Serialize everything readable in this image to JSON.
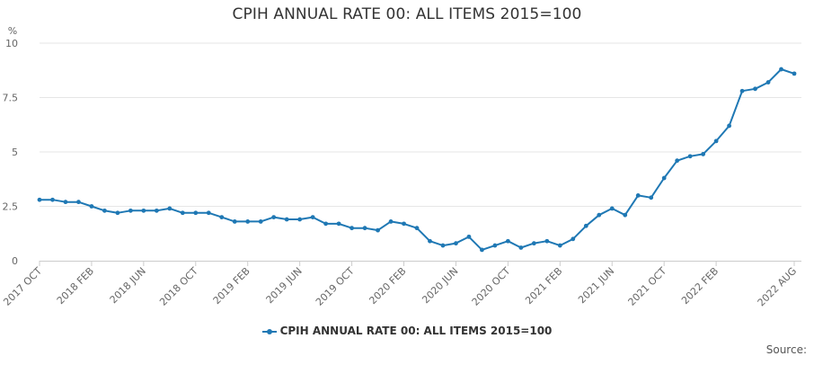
{
  "chart_data": {
    "type": "line",
    "title": "CPIH ANNUAL RATE 00: ALL ITEMS 2015=100",
    "ylabel": "%",
    "xlabel": "",
    "ylim": [
      0,
      10
    ],
    "yticks": [
      0,
      2.5,
      5,
      7.5,
      10
    ],
    "ytick_labels": [
      "0",
      "2.5",
      "5",
      "7.5",
      "10"
    ],
    "grid": true,
    "legend_position": "bottom-center",
    "x_tick_labels": [
      {
        "index": 0,
        "label": "2017 OCT"
      },
      {
        "index": 4,
        "label": "2018 FEB"
      },
      {
        "index": 8,
        "label": "2018 JUN"
      },
      {
        "index": 12,
        "label": "2018 OCT"
      },
      {
        "index": 16,
        "label": "2019 FEB"
      },
      {
        "index": 20,
        "label": "2019 JUN"
      },
      {
        "index": 24,
        "label": "2019 OCT"
      },
      {
        "index": 28,
        "label": "2020 FEB"
      },
      {
        "index": 32,
        "label": "2020 JUN"
      },
      {
        "index": 36,
        "label": "2020 OCT"
      },
      {
        "index": 40,
        "label": "2021 FEB"
      },
      {
        "index": 44,
        "label": "2021 JUN"
      },
      {
        "index": 48,
        "label": "2021 OCT"
      },
      {
        "index": 52,
        "label": "2022 FEB"
      },
      {
        "index": 58,
        "label": "2022 AUG"
      }
    ],
    "series": [
      {
        "name": "CPIH ANNUAL RATE 00: ALL ITEMS 2015=100",
        "color": "#1f78b4",
        "x": [
          "2017 OCT",
          "2017 NOV",
          "2017 DEC",
          "2018 JAN",
          "2018 FEB",
          "2018 MAR",
          "2018 APR",
          "2018 MAY",
          "2018 JUN",
          "2018 JUL",
          "2018 AUG",
          "2018 SEP",
          "2018 OCT",
          "2018 NOV",
          "2018 DEC",
          "2019 JAN",
          "2019 FEB",
          "2019 MAR",
          "2019 APR",
          "2019 MAY",
          "2019 JUN",
          "2019 JUL",
          "2019 AUG",
          "2019 SEP",
          "2019 OCT",
          "2019 NOV",
          "2019 DEC",
          "2020 JAN",
          "2020 FEB",
          "2020 MAR",
          "2020 APR",
          "2020 MAY",
          "2020 JUN",
          "2020 JUL",
          "2020 AUG",
          "2020 SEP",
          "2020 OCT",
          "2020 NOV",
          "2020 DEC",
          "2021 JAN",
          "2021 FEB",
          "2021 MAR",
          "2021 APR",
          "2021 MAY",
          "2021 JUN",
          "2021 JUL",
          "2021 AUG",
          "2021 SEP",
          "2021 OCT",
          "2021 NOV",
          "2021 DEC",
          "2022 JAN",
          "2022 FEB",
          "2022 MAR",
          "2022 APR",
          "2022 MAY",
          "2022 JUN",
          "2022 JUL",
          "2022 AUG"
        ],
        "values": [
          2.8,
          2.8,
          2.7,
          2.7,
          2.5,
          2.3,
          2.2,
          2.3,
          2.3,
          2.3,
          2.4,
          2.2,
          2.2,
          2.2,
          2.0,
          1.8,
          1.8,
          1.8,
          2.0,
          1.9,
          1.9,
          2.0,
          1.7,
          1.7,
          1.5,
          1.5,
          1.4,
          1.8,
          1.7,
          1.5,
          0.9,
          0.7,
          0.8,
          1.1,
          0.5,
          0.7,
          0.9,
          0.6,
          0.8,
          0.9,
          0.7,
          1.0,
          1.6,
          2.1,
          2.4,
          2.1,
          3.0,
          2.9,
          3.8,
          4.6,
          4.8,
          4.9,
          5.5,
          6.2,
          7.8,
          7.9,
          8.2,
          8.8,
          8.6
        ]
      }
    ]
  },
  "legend": {
    "label": "CPIH ANNUAL RATE 00: ALL ITEMS 2015=100"
  },
  "source_label": "Source:"
}
